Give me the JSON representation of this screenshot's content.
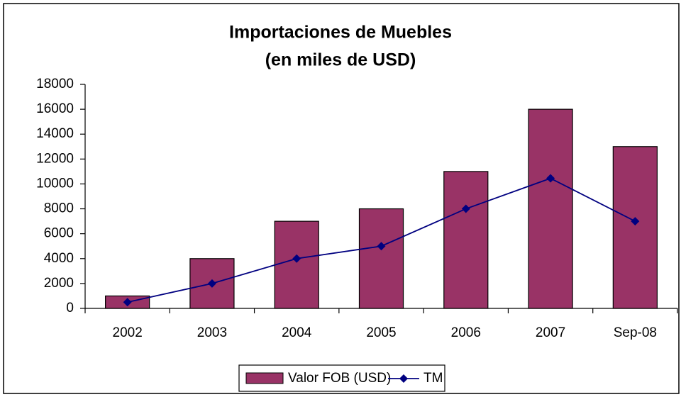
{
  "chart_data": {
    "type": "bar",
    "title": "Importaciones de Muebles",
    "subtitle": "(en miles de USD)",
    "categories": [
      "2002",
      "2003",
      "2004",
      "2005",
      "2006",
      "2007",
      "Sep-08"
    ],
    "series": [
      {
        "name": "Valor FOB (USD)",
        "type": "bar",
        "color": "#993366",
        "values": [
          1000,
          4000,
          7000,
          8000,
          11000,
          16000,
          13000
        ]
      },
      {
        "name": "TM",
        "type": "line",
        "color": "#000080",
        "values": [
          500,
          2000,
          4000,
          5000,
          8000,
          10450,
          7000
        ]
      }
    ],
    "ylim": [
      0,
      18000
    ],
    "yticks": [
      0,
      2000,
      4000,
      6000,
      8000,
      10000,
      12000,
      14000,
      16000,
      18000
    ],
    "grid": false,
    "legend": "bottom"
  }
}
